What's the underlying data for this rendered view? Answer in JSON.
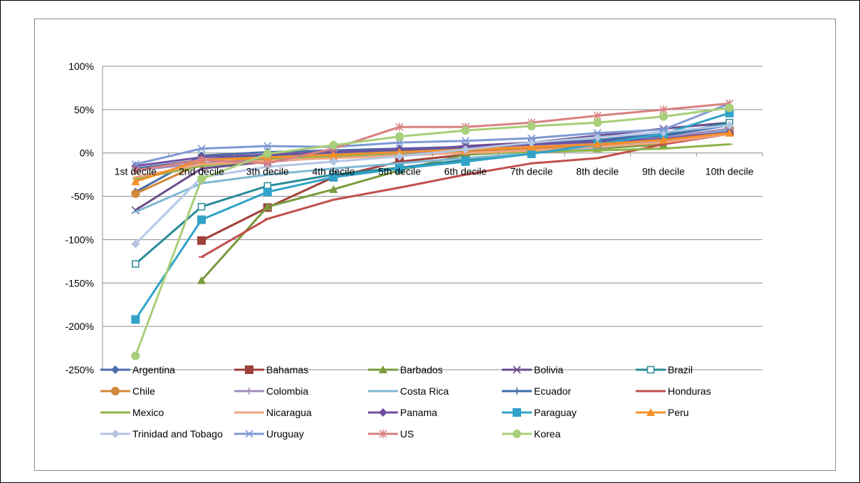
{
  "chart_data": {
    "type": "line",
    "title": "",
    "xlabel": "",
    "ylabel": "",
    "categories": [
      "1st decile",
      "2nd decile",
      "3th decile",
      "4th decile",
      "5th decile",
      "6th decile",
      "7th decile",
      "8th decile",
      "9th decile",
      "10th decile"
    ],
    "y_ticks": [
      "100%",
      "50%",
      "0%",
      "-50%",
      "-100%",
      "-150%",
      "-200%",
      "-250%"
    ],
    "ylim": [
      -250,
      100
    ],
    "grid": true,
    "legend_position": "bottom",
    "series": [
      {
        "name": "Argentina",
        "color": "#4a6ea8",
        "marker": "diamond",
        "values": [
          -45,
          -3,
          1,
          3,
          5,
          7,
          10,
          15,
          22,
          32
        ]
      },
      {
        "name": "Bahamas",
        "color": "#a0413c",
        "marker": "square",
        "values": [
          null,
          -101,
          -63,
          -28,
          -10,
          -2,
          4,
          10,
          16,
          25
        ]
      },
      {
        "name": "Barbados",
        "color": "#7a9a3c",
        "marker": "triangle",
        "values": [
          null,
          -147,
          -62,
          -42,
          -20,
          -2,
          2,
          5,
          10,
          28
        ]
      },
      {
        "name": "Bolivia",
        "color": "#6a4c8c",
        "marker": "x",
        "values": [
          -66,
          -18,
          -10,
          -5,
          2,
          8,
          12,
          20,
          28,
          35
        ]
      },
      {
        "name": "Brazil",
        "color": "#2a8a9a",
        "marker": "open-square",
        "values": [
          -128,
          -62,
          -38,
          -25,
          -17,
          -8,
          0,
          10,
          20,
          35
        ]
      },
      {
        "name": "Chile",
        "color": "#d2883a",
        "marker": "circle",
        "values": [
          -47,
          -12,
          -6,
          -4,
          -2,
          2,
          5,
          8,
          14,
          26
        ]
      },
      {
        "name": "Colombia",
        "color": "#9e8cbe",
        "marker": "plus",
        "values": [
          -20,
          -12,
          -8,
          -4,
          -1,
          4,
          8,
          12,
          18,
          28
        ]
      },
      {
        "name": "Costa Rica",
        "color": "#7fb8d4",
        "marker": "dash",
        "values": [
          -68,
          -35,
          -25,
          -18,
          -12,
          -6,
          0,
          6,
          14,
          26
        ]
      },
      {
        "name": "Ecuador",
        "color": "#3c6ea8",
        "marker": "plus",
        "values": [
          -18,
          -8,
          -3,
          0,
          3,
          6,
          10,
          14,
          20,
          32
        ]
      },
      {
        "name": "Honduras",
        "color": "#c0504d",
        "marker": "dash",
        "values": [
          null,
          -120,
          -76,
          -54,
          -40,
          -25,
          -12,
          -6,
          10,
          22
        ]
      },
      {
        "name": "Mexico",
        "color": "#8db34a",
        "marker": "dash",
        "values": [
          -30,
          -15,
          -8,
          -4,
          -2,
          0,
          1,
          3,
          5,
          10
        ]
      },
      {
        "name": "Nicaragua",
        "color": "#f4a582",
        "marker": "dash",
        "values": [
          -28,
          -13,
          -9,
          -6,
          -3,
          0,
          3,
          7,
          12,
          22
        ]
      },
      {
        "name": "Panama",
        "color": "#7051a0",
        "marker": "diamond",
        "values": [
          -15,
          -5,
          -2,
          1,
          4,
          7,
          10,
          13,
          16,
          24
        ]
      },
      {
        "name": "Paraguay",
        "color": "#31a3c8",
        "marker": "square",
        "values": [
          -192,
          -77,
          -45,
          -28,
          -18,
          -10,
          -1,
          10,
          22,
          46
        ]
      },
      {
        "name": "Peru",
        "color": "#f5902a",
        "marker": "triangle",
        "values": [
          -33,
          -8,
          -5,
          -2,
          1,
          4,
          7,
          10,
          15,
          23
        ]
      },
      {
        "name": "Trinidad and Tobago",
        "color": "#b4c6e4",
        "marker": "diamond",
        "values": [
          -105,
          -28,
          -16,
          -10,
          -4,
          4,
          12,
          18,
          24,
          32
        ]
      },
      {
        "name": "Uruguay",
        "color": "#7f99d4",
        "marker": "x",
        "values": [
          -13,
          5,
          8,
          7,
          12,
          14,
          17,
          23,
          27,
          57
        ]
      },
      {
        "name": "US",
        "color": "#d98080",
        "marker": "star",
        "values": [
          -20,
          -8,
          -12,
          5,
          30,
          30,
          35,
          43,
          50,
          57
        ]
      },
      {
        "name": "Korea",
        "color": "#a8cf7a",
        "marker": "circle",
        "values": [
          -234,
          -30,
          -1,
          9,
          19,
          26,
          31,
          35,
          42,
          52
        ]
      }
    ]
  }
}
